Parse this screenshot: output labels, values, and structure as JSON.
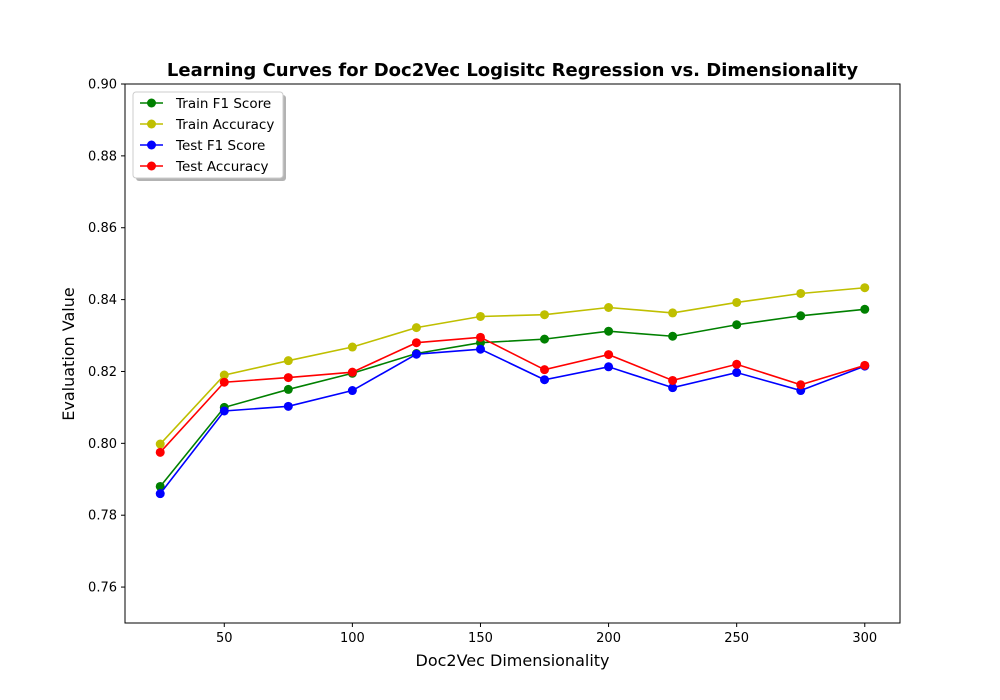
{
  "chart_data": {
    "type": "line",
    "title": "Learning Curves for Doc2Vec Logisitc Regression vs. Dimensionality",
    "xlabel": "Doc2Vec Dimensionality",
    "ylabel": "Evaluation Value",
    "xlim": [
      11.25,
      313.75
    ],
    "ylim": [
      0.75,
      0.9
    ],
    "x_ticks": [
      50,
      100,
      150,
      200,
      250,
      300
    ],
    "x_tick_labels": [
      "50",
      "100",
      "150",
      "200",
      "250",
      "300"
    ],
    "y_ticks": [
      0.76,
      0.78,
      0.8,
      0.82,
      0.84,
      0.86,
      0.88,
      0.9
    ],
    "y_tick_labels": [
      "0.76",
      "0.78",
      "0.80",
      "0.82",
      "0.84",
      "0.86",
      "0.88",
      "0.90"
    ],
    "grid": false,
    "legend_position": "top-left",
    "x": [
      25,
      50,
      75,
      100,
      125,
      150,
      175,
      200,
      225,
      250,
      275,
      300
    ],
    "series": [
      {
        "name": "Train F1 Score",
        "color": "#008000",
        "values": [
          0.788,
          0.81,
          0.815,
          0.8195,
          0.825,
          0.828,
          0.829,
          0.8312,
          0.8298,
          0.833,
          0.8355,
          0.8373
        ]
      },
      {
        "name": "Train Accuracy",
        "color": "#bfbf00",
        "values": [
          0.7998,
          0.819,
          0.823,
          0.8268,
          0.8322,
          0.8353,
          0.8358,
          0.8378,
          0.8363,
          0.8392,
          0.8417,
          0.8433
        ]
      },
      {
        "name": "Test F1 Score",
        "color": "#0000ff",
        "values": [
          0.786,
          0.809,
          0.8103,
          0.8147,
          0.8248,
          0.8262,
          0.8177,
          0.8213,
          0.8155,
          0.8197,
          0.8147,
          0.8215
        ]
      },
      {
        "name": "Test Accuracy",
        "color": "#ff0000",
        "values": [
          0.7975,
          0.817,
          0.8183,
          0.8198,
          0.828,
          0.8295,
          0.8205,
          0.8247,
          0.8175,
          0.822,
          0.8163,
          0.8217
        ]
      }
    ]
  }
}
